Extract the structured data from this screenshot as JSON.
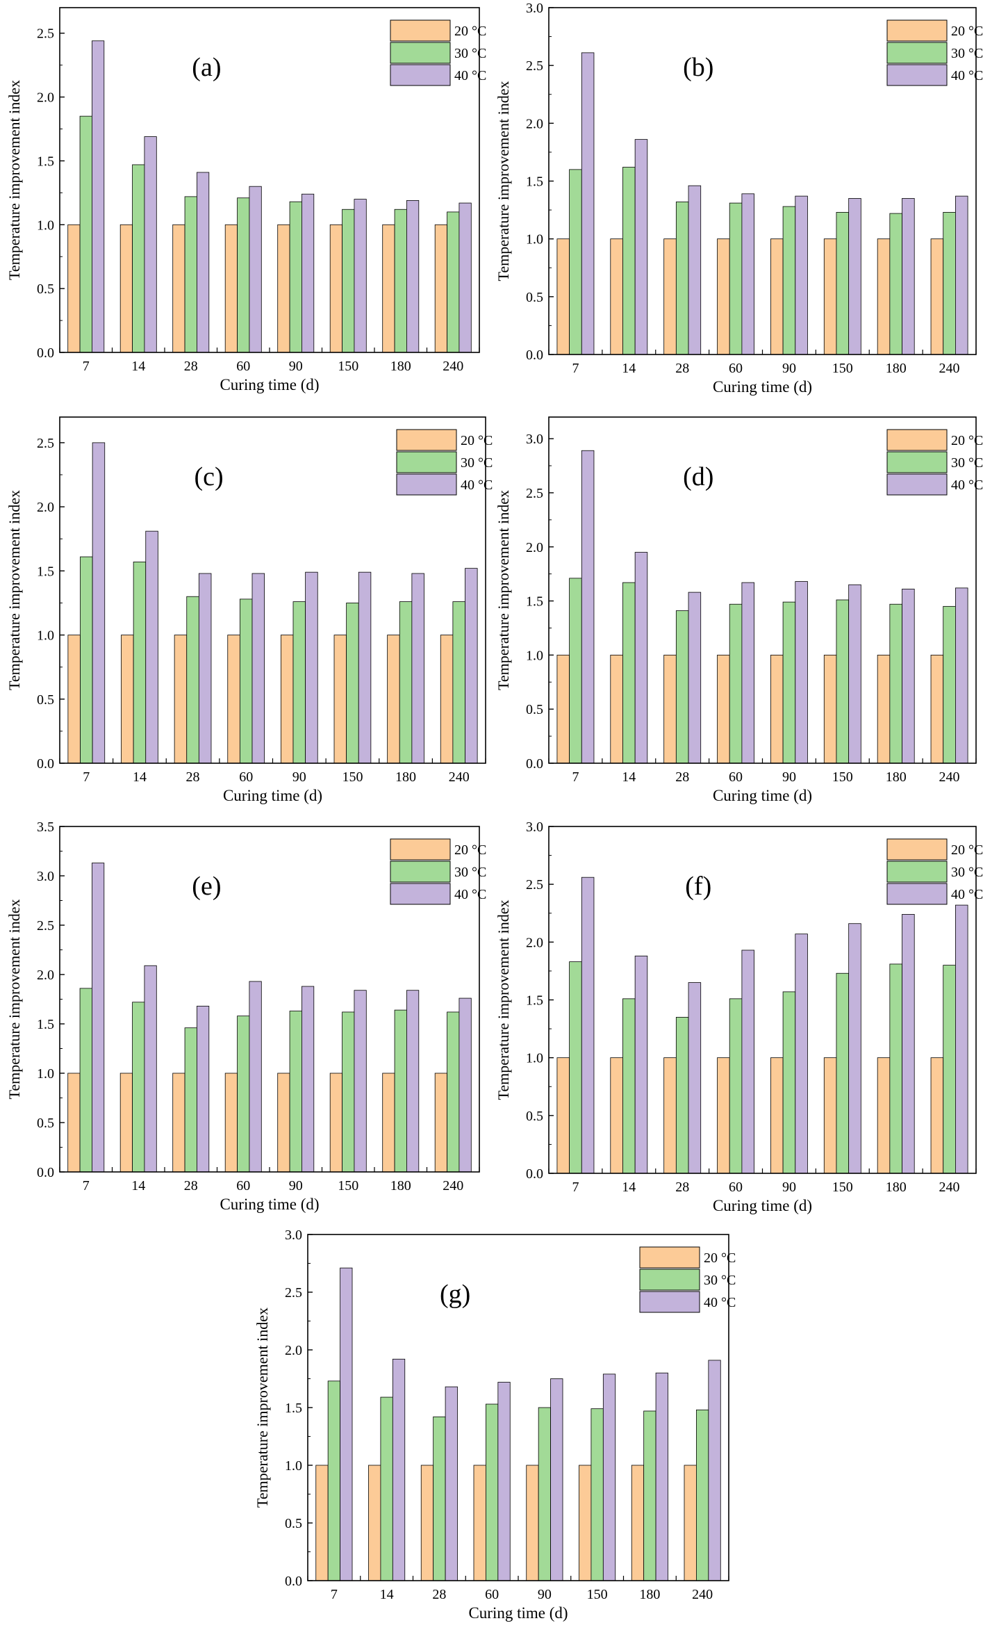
{
  "legend": [
    "20 °C",
    "30 °C",
    "40 °C"
  ],
  "colors": {
    "20 °C": "#FCCB97",
    "30 °C": "#A2DA97",
    "40 °C": "#C3B3DB",
    "stroke": "#000000"
  },
  "chart_data": [
    {
      "type": "bar",
      "panel": "(a)",
      "categories": [
        "7",
        "14",
        "28",
        "60",
        "90",
        "150",
        "180",
        "240"
      ],
      "xlabel": "Curing time (d)",
      "ylabel": "Temperature improvement index",
      "ylim": [
        0,
        2.7
      ],
      "yticks": [
        "0.0",
        "0.5",
        "1.0",
        "1.5",
        "2.0",
        "2.5"
      ],
      "legend_position": "top-right",
      "series": [
        {
          "name": "20 °C",
          "values": [
            1.0,
            1.0,
            1.0,
            1.0,
            1.0,
            1.0,
            1.0,
            1.0
          ]
        },
        {
          "name": "30 °C",
          "values": [
            1.85,
            1.47,
            1.22,
            1.21,
            1.18,
            1.12,
            1.12,
            1.1
          ]
        },
        {
          "name": "40 °C",
          "values": [
            2.44,
            1.69,
            1.41,
            1.3,
            1.24,
            1.2,
            1.19,
            1.17
          ]
        }
      ]
    },
    {
      "type": "bar",
      "panel": "(b)",
      "categories": [
        "7",
        "14",
        "28",
        "60",
        "90",
        "150",
        "180",
        "240"
      ],
      "xlabel": "Curing time (d)",
      "ylabel": "Temperature improvement index",
      "ylim": [
        0,
        3.0
      ],
      "yticks": [
        "0.0",
        "0.5",
        "1.0",
        "1.5",
        "2.0",
        "2.5",
        "3.0"
      ],
      "legend_position": "top-right",
      "series": [
        {
          "name": "20 °C",
          "values": [
            1.0,
            1.0,
            1.0,
            1.0,
            1.0,
            1.0,
            1.0,
            1.0
          ]
        },
        {
          "name": "30 °C",
          "values": [
            1.6,
            1.62,
            1.32,
            1.31,
            1.28,
            1.23,
            1.22,
            1.23
          ]
        },
        {
          "name": "40 °C",
          "values": [
            2.61,
            1.86,
            1.46,
            1.39,
            1.37,
            1.35,
            1.35,
            1.37
          ]
        }
      ]
    },
    {
      "type": "bar",
      "panel": "(c)",
      "categories": [
        "7",
        "14",
        "28",
        "60",
        "90",
        "150",
        "180",
        "240"
      ],
      "xlabel": "Curing time (d)",
      "ylabel": "Temperature improvement index",
      "ylim": [
        0,
        2.7
      ],
      "yticks": [
        "0.0",
        "0.5",
        "1.0",
        "1.5",
        "2.0",
        "2.5"
      ],
      "legend_position": "top-right",
      "series": [
        {
          "name": "20 °C",
          "values": [
            1.0,
            1.0,
            1.0,
            1.0,
            1.0,
            1.0,
            1.0,
            1.0
          ]
        },
        {
          "name": "30 °C",
          "values": [
            1.61,
            1.57,
            1.3,
            1.28,
            1.26,
            1.25,
            1.26,
            1.26
          ]
        },
        {
          "name": "40 °C",
          "values": [
            2.5,
            1.81,
            1.48,
            1.48,
            1.49,
            1.49,
            1.48,
            1.52
          ]
        }
      ]
    },
    {
      "type": "bar",
      "panel": "(d)",
      "categories": [
        "7",
        "14",
        "28",
        "60",
        "90",
        "150",
        "180",
        "240"
      ],
      "xlabel": "Curing time (d)",
      "ylabel": "Temperature improvement index",
      "ylim": [
        0,
        3.2
      ],
      "yticks": [
        "0.0",
        "0.5",
        "1.0",
        "1.5",
        "2.0",
        "2.5",
        "3.0"
      ],
      "legend_position": "top-right",
      "series": [
        {
          "name": "20 °C",
          "values": [
            1.0,
            1.0,
            1.0,
            1.0,
            1.0,
            1.0,
            1.0,
            1.0
          ]
        },
        {
          "name": "30 °C",
          "values": [
            1.71,
            1.67,
            1.41,
            1.47,
            1.49,
            1.51,
            1.47,
            1.45
          ]
        },
        {
          "name": "40 °C",
          "values": [
            2.89,
            1.95,
            1.58,
            1.67,
            1.68,
            1.65,
            1.61,
            1.62
          ]
        }
      ]
    },
    {
      "type": "bar",
      "panel": "(e)",
      "categories": [
        "7",
        "14",
        "28",
        "60",
        "90",
        "150",
        "180",
        "240"
      ],
      "xlabel": "Curing time (d)",
      "ylabel": "Temperature improvement index",
      "ylim": [
        0,
        3.5
      ],
      "yticks": [
        "0.0",
        "0.5",
        "1.0",
        "1.5",
        "2.0",
        "2.5",
        "3.0",
        "3.5"
      ],
      "legend_position": "top-right",
      "series": [
        {
          "name": "20 °C",
          "values": [
            1.0,
            1.0,
            1.0,
            1.0,
            1.0,
            1.0,
            1.0,
            1.0
          ]
        },
        {
          "name": "30 °C",
          "values": [
            1.86,
            1.72,
            1.46,
            1.58,
            1.63,
            1.62,
            1.64,
            1.62
          ]
        },
        {
          "name": "40 °C",
          "values": [
            3.13,
            2.09,
            1.68,
            1.93,
            1.88,
            1.84,
            1.84,
            1.76
          ]
        }
      ]
    },
    {
      "type": "bar",
      "panel": "(f)",
      "categories": [
        "7",
        "14",
        "28",
        "60",
        "90",
        "150",
        "180",
        "240"
      ],
      "xlabel": "Curing time (d)",
      "ylabel": "Temperature improvement index",
      "ylim": [
        0,
        3.0
      ],
      "yticks": [
        "0.0",
        "0.5",
        "1.0",
        "1.5",
        "2.0",
        "2.5",
        "3.0"
      ],
      "legend_position": "top-right",
      "series": [
        {
          "name": "20 °C",
          "values": [
            1.0,
            1.0,
            1.0,
            1.0,
            1.0,
            1.0,
            1.0,
            1.0
          ]
        },
        {
          "name": "30 °C",
          "values": [
            1.83,
            1.51,
            1.35,
            1.51,
            1.57,
            1.73,
            1.81,
            1.8
          ]
        },
        {
          "name": "40 °C",
          "values": [
            2.56,
            1.88,
            1.65,
            1.93,
            2.07,
            2.16,
            2.24,
            2.32
          ]
        }
      ]
    },
    {
      "type": "bar",
      "panel": "(g)",
      "categories": [
        "7",
        "14",
        "28",
        "60",
        "90",
        "150",
        "180",
        "240"
      ],
      "xlabel": "Curing time (d)",
      "ylabel": "Temperature improvement index",
      "ylim": [
        0,
        3.0
      ],
      "yticks": [
        "0.0",
        "0.5",
        "1.0",
        "1.5",
        "2.0",
        "2.5",
        "3.0"
      ],
      "legend_position": "top-right",
      "series": [
        {
          "name": "20 °C",
          "values": [
            1.0,
            1.0,
            1.0,
            1.0,
            1.0,
            1.0,
            1.0,
            1.0
          ]
        },
        {
          "name": "30 °C",
          "values": [
            1.73,
            1.59,
            1.42,
            1.53,
            1.5,
            1.49,
            1.47,
            1.48
          ]
        },
        {
          "name": "40 °C",
          "values": [
            2.71,
            1.92,
            1.68,
            1.72,
            1.75,
            1.79,
            1.8,
            1.91
          ]
        }
      ]
    }
  ]
}
